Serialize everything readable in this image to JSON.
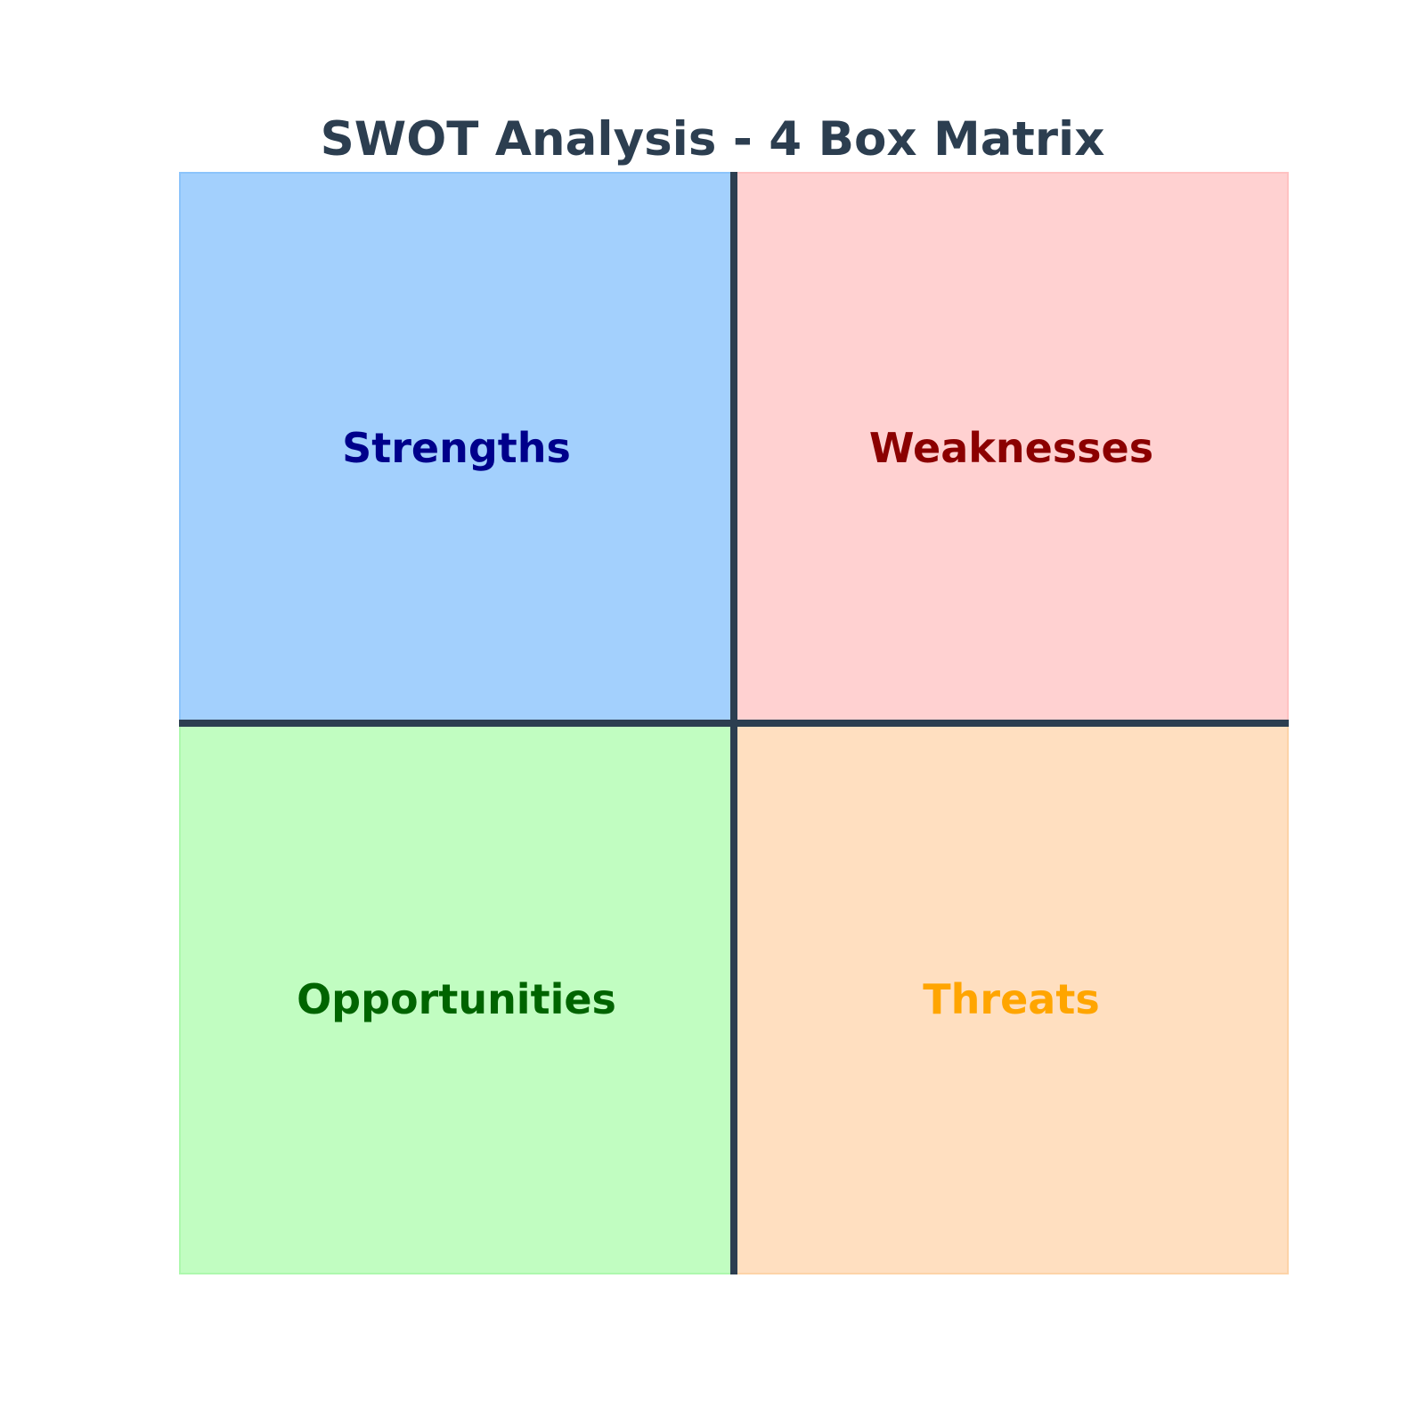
{
  "title": "SWOT Analysis - 4 Box Matrix",
  "quadrants": [
    {
      "label": "Strengths",
      "fill": "#a3d0fd",
      "text_color": "#00008b"
    },
    {
      "label": "Weaknesses",
      "fill": "#ffd1d1",
      "text_color": "#8b0000"
    },
    {
      "label": "Opportunities",
      "fill": "#c1fdc1",
      "text_color": "#006400"
    },
    {
      "label": "Threats",
      "fill": "#ffdfc0",
      "text_color": "#ffa500"
    }
  ],
  "divider_color": "#2c3e50"
}
